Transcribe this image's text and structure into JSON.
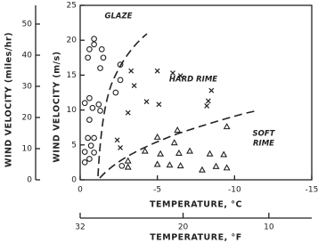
{
  "chart_data": {
    "type": "scatter",
    "xlabel": "TEMPERATURE, °C",
    "ylabel": "WIND VELOCITY (m/s)",
    "y2label": "WIND VELOCITY (miles/hr)",
    "x2label": "TEMPERATURE, °F",
    "xlim": [
      0,
      -15
    ],
    "xticks": [
      0,
      -5,
      -10,
      -15
    ],
    "ylim": [
      0,
      25
    ],
    "yticks": [
      0,
      5,
      10,
      15,
      20,
      25
    ],
    "y2lim": [
      0,
      56
    ],
    "y2ticks": [
      0,
      10,
      20,
      30,
      40,
      50
    ],
    "x2lim": [
      32,
      5
    ],
    "x2ticks": [
      32,
      20,
      10
    ],
    "annotations": [
      "GLAZE",
      "HARD RIME",
      "SOFT",
      "RIME"
    ],
    "series": [
      {
        "name": "glaze",
        "marker": "circle",
        "color": "#222",
        "x": [
          -0.9,
          -0.9,
          -1.4,
          -0.6,
          -1.5,
          -0.5,
          -2.6,
          -1.3,
          -2.6,
          -0.6,
          -0.3,
          -1.2,
          -0.8,
          -1.3,
          -0.6,
          -0.5,
          -0.9,
          -0.7,
          -0.3,
          -0.9,
          -0.6,
          -0.3,
          -2.7,
          -2.3
        ],
        "values": [
          20.2,
          19.4,
          18.7,
          18.7,
          17.5,
          17.5,
          16.5,
          16.0,
          14.3,
          11.7,
          11.0,
          10.8,
          10.3,
          9.9,
          8.6,
          6.0,
          6.0,
          4.9,
          4.0,
          3.9,
          3.0,
          2.5,
          2.0,
          12.5
        ]
      },
      {
        "name": "hard rime",
        "marker": "x",
        "color": "#222",
        "x": [
          -3.3,
          -5.0,
          -6.0,
          -6.5,
          -8.5,
          -8.3,
          -8.2,
          -4.3,
          -5.1,
          -3.1,
          -2.4,
          -2.6,
          -3.5
        ],
        "values": [
          15.6,
          15.6,
          15.3,
          14.9,
          12.8,
          11.3,
          10.6,
          11.2,
          10.8,
          9.6,
          5.7,
          4.6,
          13.5
        ]
      },
      {
        "name": "soft rime",
        "marker": "triangle",
        "color": "#222",
        "x": [
          -3.1,
          -3.1,
          -4.2,
          -5.0,
          -5.2,
          -6.3,
          -6.1,
          -6.4,
          -7.1,
          -5.0,
          -6.5,
          -7.9,
          -8.4,
          -8.8,
          -9.5,
          -9.3,
          -9.5,
          -5.8
        ],
        "values": [
          1.8,
          2.7,
          4.1,
          6.1,
          3.7,
          7.1,
          5.3,
          3.8,
          4.1,
          2.2,
          2.0,
          1.4,
          3.7,
          1.9,
          7.6,
          3.6,
          1.7,
          2.1
        ]
      }
    ]
  }
}
